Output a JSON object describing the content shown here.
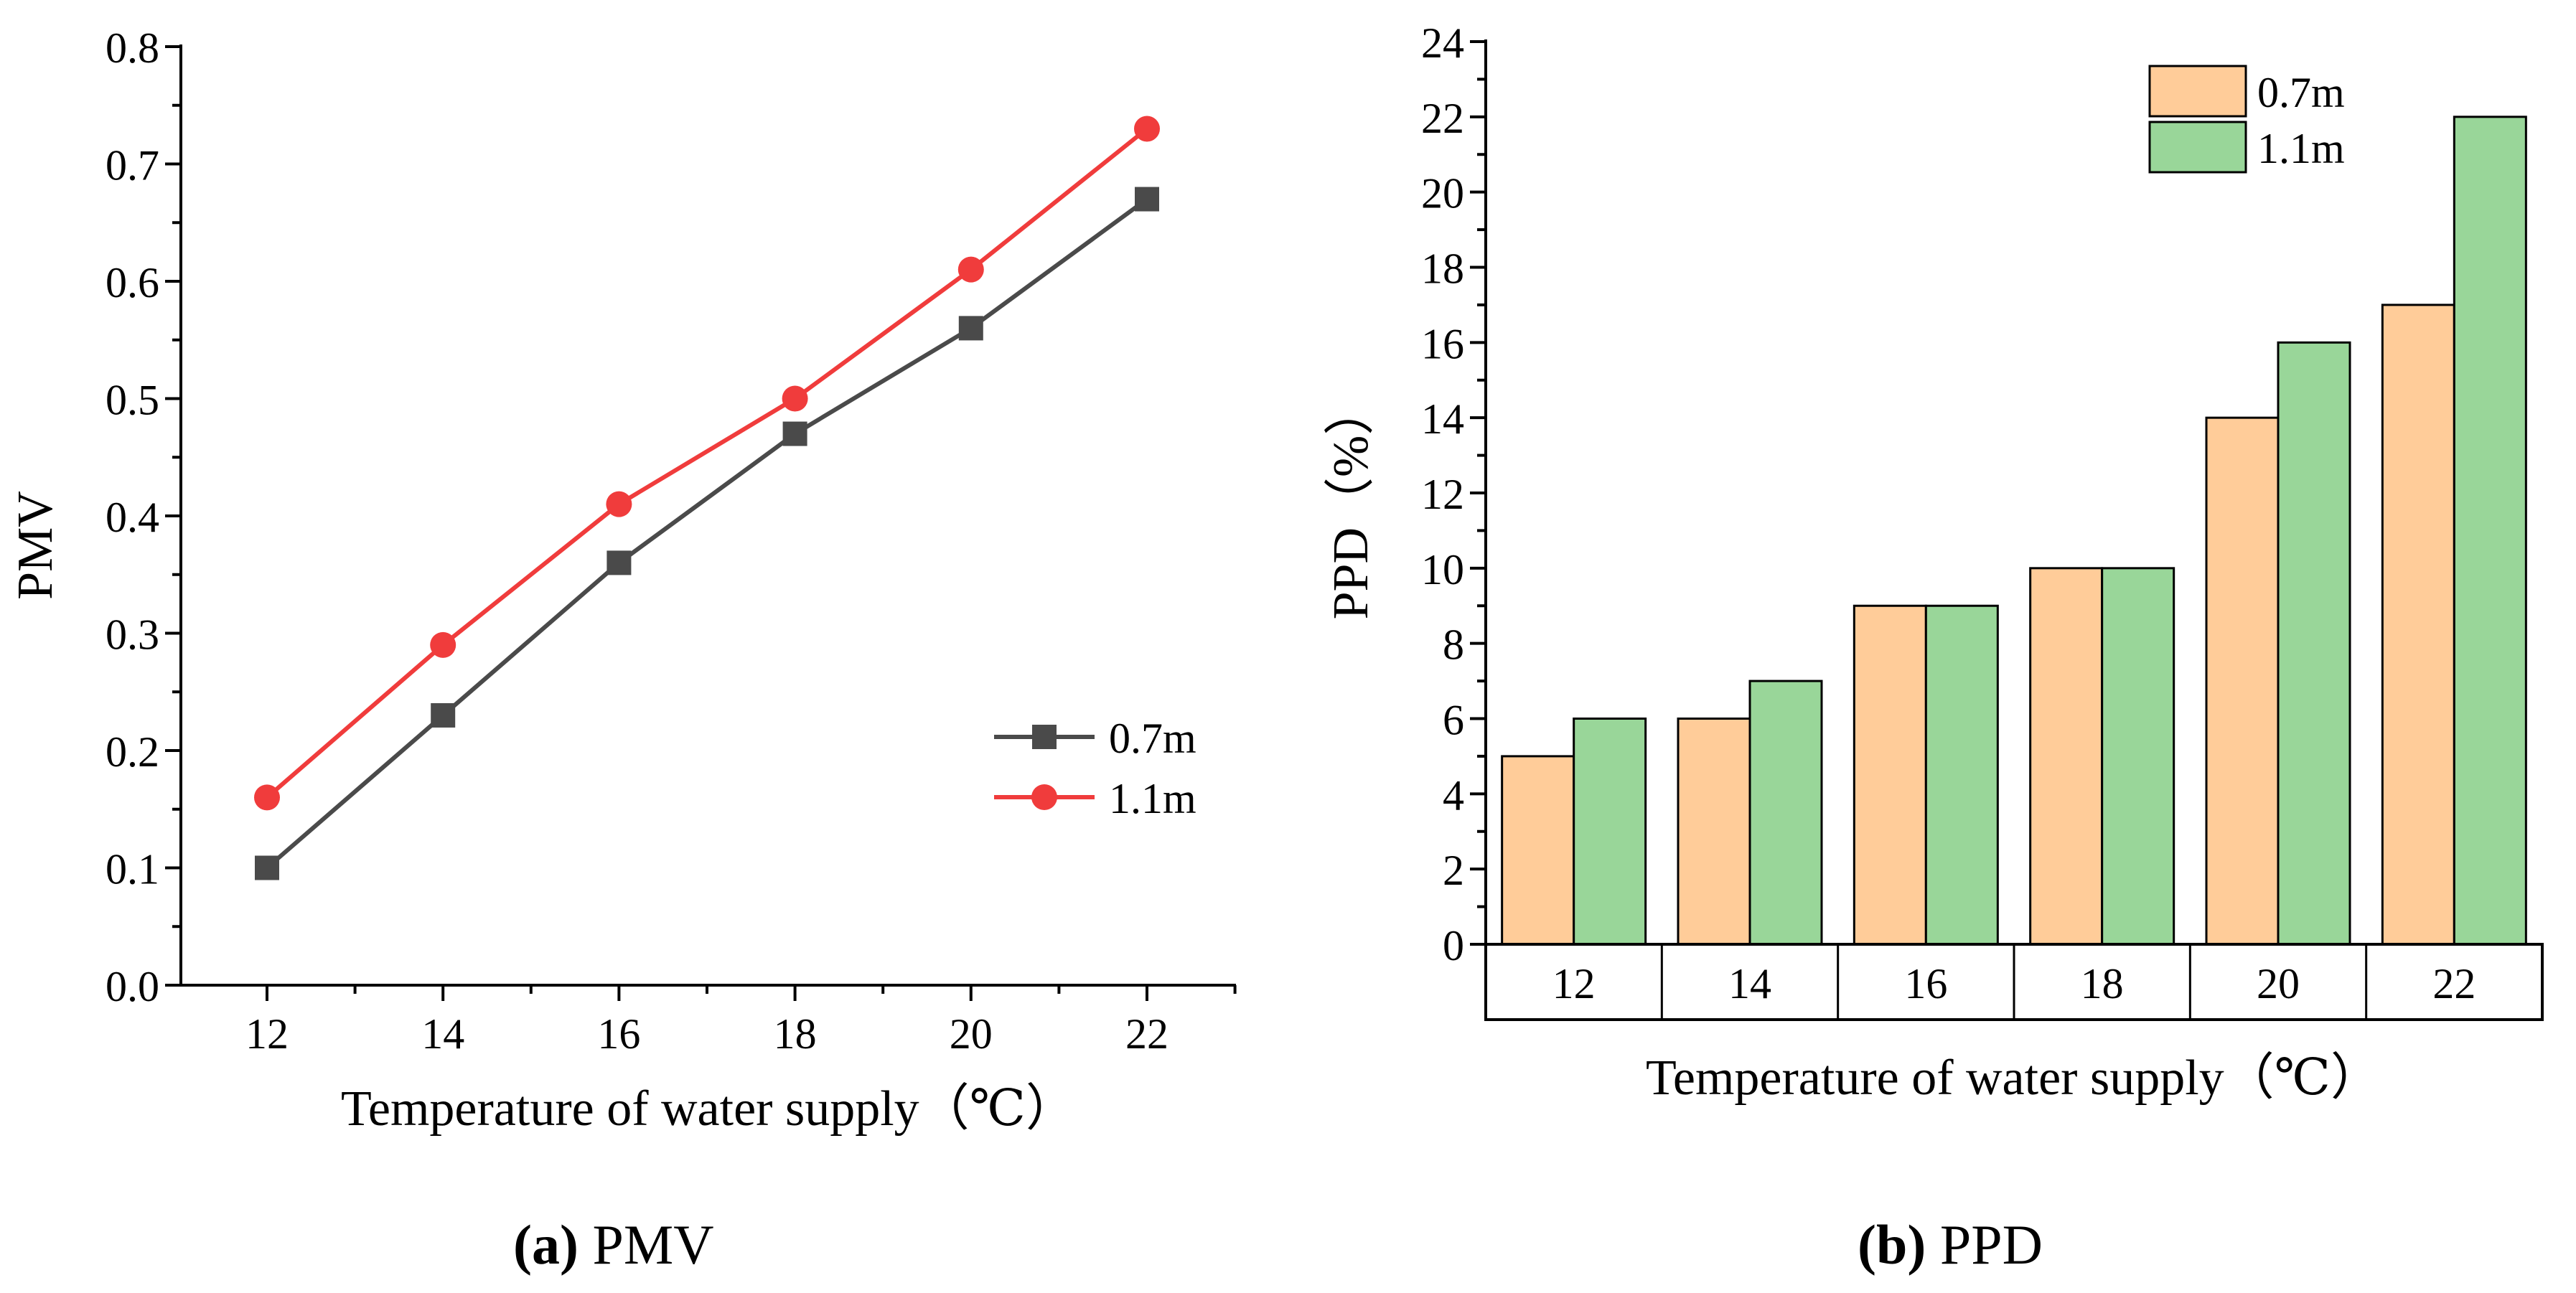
{
  "chart_data": [
    {
      "type": "line",
      "title": "",
      "xlabel": "Temperature of water supply（℃）",
      "ylabel": "PMV",
      "x": [
        12,
        14,
        16,
        18,
        20,
        22
      ],
      "xticks": [
        "12",
        "14",
        "16",
        "18",
        "20",
        "22"
      ],
      "ylim": [
        0.0,
        0.8
      ],
      "yticks": [
        "0.0",
        "0.1",
        "0.2",
        "0.3",
        "0.4",
        "0.5",
        "0.6",
        "0.7",
        "0.8"
      ],
      "series": [
        {
          "name": "0.7m",
          "color": "#4a4a4a",
          "marker": "square",
          "values": [
            0.1,
            0.23,
            0.36,
            0.47,
            0.56,
            0.67
          ]
        },
        {
          "name": "1.1m",
          "color": "#f03c3c",
          "marker": "circle",
          "values": [
            0.16,
            0.29,
            0.41,
            0.5,
            0.61,
            0.73
          ]
        }
      ],
      "legend": "center-right",
      "grid": false
    },
    {
      "type": "bar",
      "title": "",
      "xlabel": "Temperature of water supply（℃）",
      "ylabel": "PPD（%）",
      "categories": [
        "12",
        "14",
        "16",
        "18",
        "20",
        "22"
      ],
      "ylim": [
        0,
        24
      ],
      "yticks": [
        "0",
        "2",
        "4",
        "6",
        "8",
        "10",
        "12",
        "14",
        "16",
        "18",
        "20",
        "22",
        "24"
      ],
      "series": [
        {
          "name": "0.7m",
          "color": "#ffcc99",
          "values": [
            5,
            6,
            9,
            10,
            14,
            17
          ]
        },
        {
          "name": "1.1m",
          "color": "#99d699",
          "values": [
            6,
            7,
            9,
            10,
            16,
            22
          ]
        }
      ],
      "legend": "top-right",
      "grid": false
    }
  ],
  "captions": {
    "a": {
      "letter": "(a)",
      "text": " PMV"
    },
    "b": {
      "letter": "(b)",
      "text": " PPD"
    }
  }
}
